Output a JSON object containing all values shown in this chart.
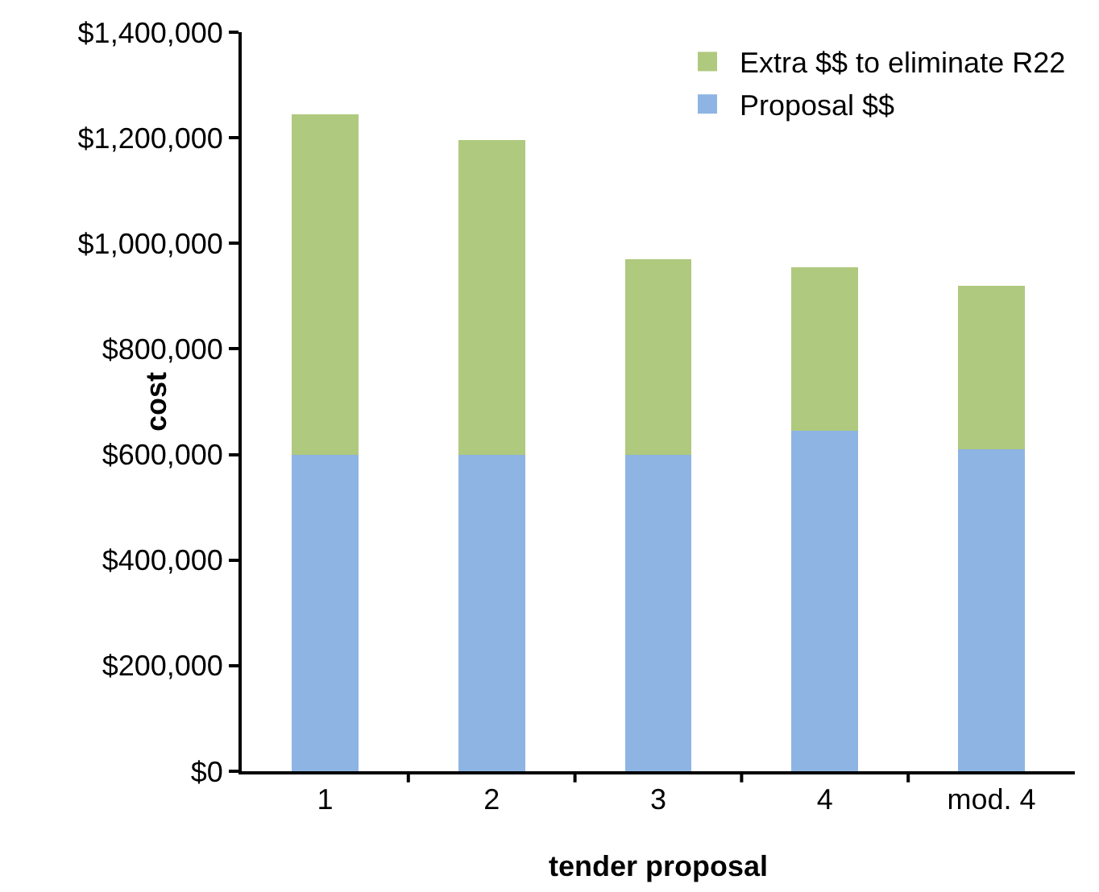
{
  "chart_data": {
    "type": "bar",
    "stacked": true,
    "xlabel": "tender proposal",
    "ylabel": "cost",
    "categories": [
      "1",
      "2",
      "3",
      "4",
      "mod. 4"
    ],
    "series": [
      {
        "name": "Proposal $$",
        "color": "#8eb4e3",
        "values": [
          600000,
          600000,
          600000,
          645000,
          610000
        ]
      },
      {
        "name": "Extra $$ to eliminate R22",
        "color": "#afc97e",
        "values": [
          645000,
          595000,
          370000,
          310000,
          310000
        ]
      }
    ],
    "ylim": [
      0,
      1400000
    ],
    "yticks": [
      {
        "value": 0,
        "label": "$0"
      },
      {
        "value": 200000,
        "label": "$200,000"
      },
      {
        "value": 400000,
        "label": "$400,000"
      },
      {
        "value": 600000,
        "label": "$600,000"
      },
      {
        "value": 800000,
        "label": "$800,000"
      },
      {
        "value": 1000000,
        "label": "$1,000,000"
      },
      {
        "value": 1200000,
        "label": "$1,200,000"
      },
      {
        "value": 1400000,
        "label": "$1,400,000"
      }
    ],
    "grid": false,
    "legend": "top right"
  }
}
